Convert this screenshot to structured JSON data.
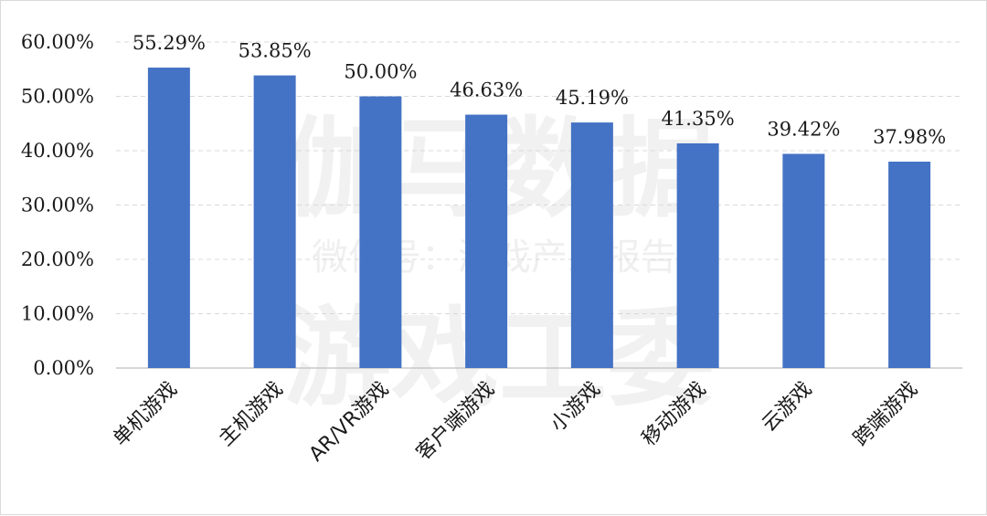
{
  "watermark": {
    "line1": "伽马数据",
    "line2": "微信号：游戏产业报告",
    "line3": "游戏工委"
  },
  "colors": {
    "bar": "#4472c4",
    "grid": "#d9d9d9",
    "axis": "#bfbfbf"
  },
  "chart_data": {
    "type": "bar",
    "categories": [
      "单机游戏",
      "主机游戏",
      "AR/VR游戏",
      "客户端游戏",
      "小游戏",
      "移动游戏",
      "云游戏",
      "跨端游戏"
    ],
    "values": [
      55.29,
      53.85,
      50.0,
      46.63,
      45.19,
      41.35,
      39.42,
      37.98
    ],
    "data_labels": [
      "55.29%",
      "53.85%",
      "50.00%",
      "46.63%",
      "45.19%",
      "41.35%",
      "39.42%",
      "37.98%"
    ],
    "y_ticks": [
      "0.00%",
      "10.00%",
      "20.00%",
      "30.00%",
      "40.00%",
      "50.00%",
      "60.00%"
    ],
    "ylim": [
      0,
      60
    ],
    "grid": true,
    "legend": "none",
    "title": "",
    "xlabel": "",
    "ylabel": ""
  }
}
